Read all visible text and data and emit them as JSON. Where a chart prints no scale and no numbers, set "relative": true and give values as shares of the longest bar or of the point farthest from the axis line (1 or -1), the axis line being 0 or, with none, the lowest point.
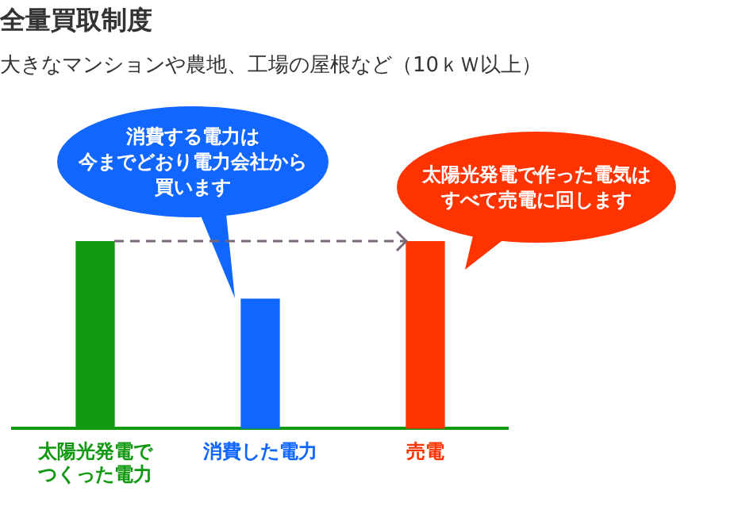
{
  "chart_data": {
    "type": "bar",
    "title": "全量買取制度",
    "subtitle": "大きなマンションや農地、工場の屋根など（10ｋＷ以上）",
    "categories": [
      "太陽光発電でつくった電力",
      "消費した電力",
      "売電"
    ],
    "values": [
      1,
      0.69,
      1
    ],
    "colors": [
      "#119911",
      "#1166ff",
      "#ff3300"
    ],
    "relative": true,
    "grid": false,
    "legend": false,
    "annotations": [
      "消費する電力は今までどおり電力会社から買います",
      "太陽光発電で作った電気はすべて売電に回します"
    ]
  }
}
